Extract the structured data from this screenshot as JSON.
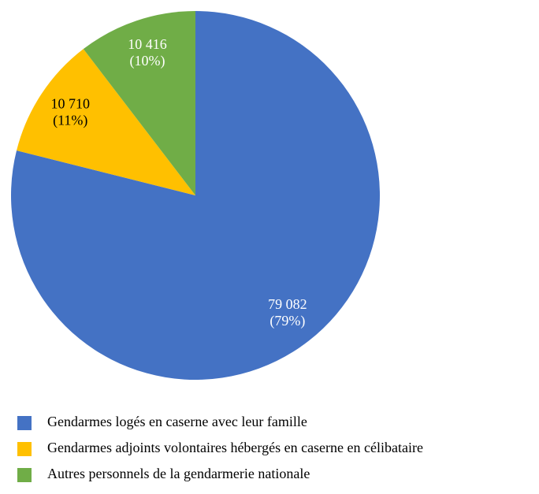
{
  "chart_data": {
    "type": "pie",
    "categories": [
      "Gendarmes logés en caserne avec leur famille",
      "Gendarmes adjoints volontaires hébergés en caserne en célibataire",
      "Autres personnels de la gendarmerie nationale"
    ],
    "values": [
      79082,
      10710,
      10416
    ],
    "value_labels": [
      "79 082",
      "10 710",
      "10 416"
    ],
    "percents": [
      79,
      11,
      10
    ],
    "percent_labels": [
      "(79%)",
      "(11%)",
      "(10%)"
    ],
    "colors": [
      "#4472c4",
      "#ffc000",
      "#70ad47"
    ],
    "label_colors": [
      "#ffffff",
      "#000000",
      "#ffffff"
    ],
    "legend": "bottom-left"
  }
}
